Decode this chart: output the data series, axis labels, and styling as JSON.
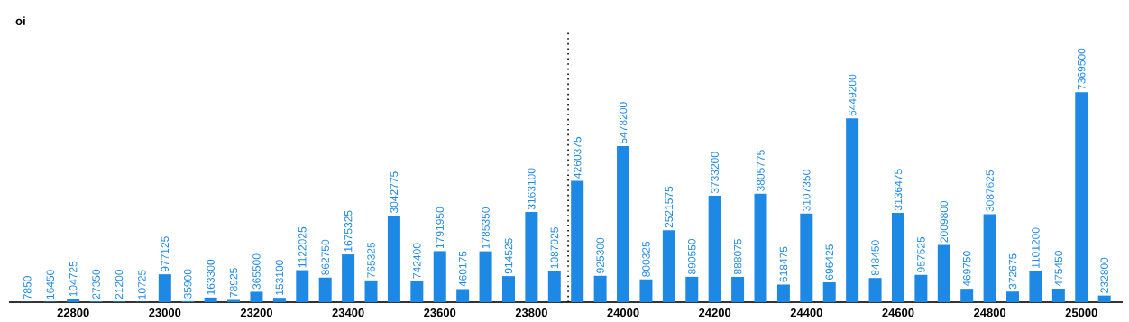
{
  "chart_data": {
    "type": "bar",
    "ylabel": "oi",
    "x": [
      22700,
      22750,
      22800,
      22850,
      22900,
      22950,
      23000,
      23050,
      23100,
      23150,
      23200,
      23250,
      23300,
      23350,
      23400,
      23450,
      23500,
      23550,
      23600,
      23650,
      23700,
      23750,
      23800,
      23850,
      23900,
      23950,
      24000,
      24050,
      24100,
      24150,
      24200,
      24250,
      24300,
      24350,
      24400,
      24450,
      24500,
      24550,
      24600,
      24650,
      24700,
      24750,
      24800,
      24850,
      24900,
      24950,
      25000,
      25050
    ],
    "values": [
      7850,
      16450,
      104725,
      27350,
      21200,
      10725,
      977125,
      35900,
      163300,
      78925,
      365500,
      153100,
      1122025,
      862750,
      1675325,
      765325,
      3042775,
      742400,
      1791950,
      460175,
      1785350,
      914525,
      3163100,
      1087925,
      4260375,
      925300,
      5478200,
      800325,
      2521575,
      890550,
      3733200,
      888075,
      3805775,
      618475,
      3107350,
      696425,
      6449200,
      848450,
      3136475,
      957525,
      2009800,
      469750,
      3087625,
      372675,
      1101200,
      475450,
      7369500,
      232800
    ],
    "color": "#1e88e5",
    "data_labels": true,
    "xlim": [
      22660,
      25090
    ],
    "xticks": [
      22800,
      23000,
      23200,
      23400,
      23600,
      23800,
      24000,
      24200,
      24400,
      24600,
      24800,
      25000
    ],
    "ylim": [
      0,
      9500000
    ],
    "tick_labels": "x",
    "ref_lines": [
      {
        "axis": "x",
        "value": 23880,
        "color": "#000000",
        "line_style": "dotted"
      }
    ]
  }
}
